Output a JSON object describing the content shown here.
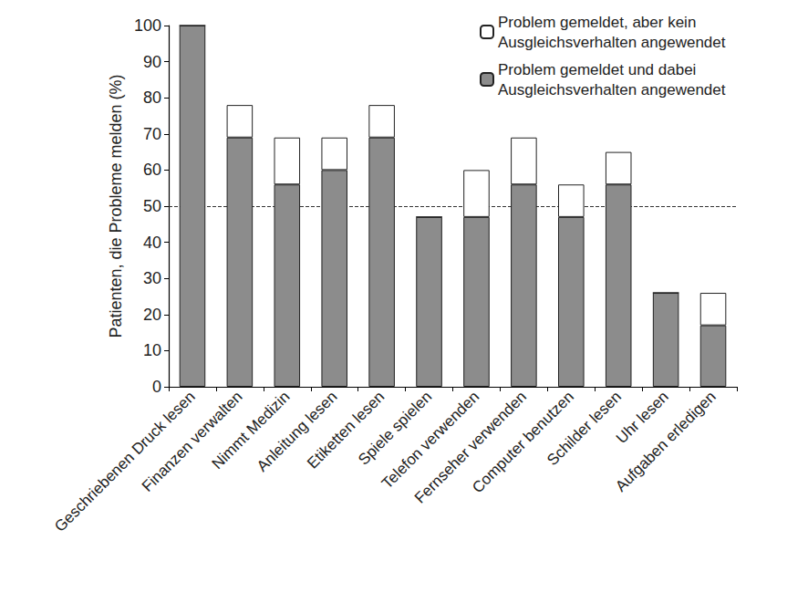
{
  "chart_data": {
    "type": "bar",
    "stacked": true,
    "y_label": "Patienten, die Probleme melden (%)",
    "categories": [
      "Geschriebenen Druck lesen",
      "Finanzen verwalten",
      "Nimmt Medizin",
      "Anleitung lesen",
      "Etiketten lesen",
      "Spiele spielen",
      "Telefon verwenden",
      "Fernseher verwenden",
      "Computer benutzen",
      "Schilder lesen",
      "Uhr lesen",
      "Aufgaben erledigen"
    ],
    "series": [
      {
        "name": "Problem gemeldet und dabei Ausgleichsverhalten angewendet",
        "color": "#8c8c8c",
        "values": [
          100,
          69,
          56,
          60,
          69,
          47,
          47,
          56,
          47,
          56,
          26,
          17
        ]
      },
      {
        "name": "Problem gemeldet, aber kein Ausgleichsverhalten angewendet",
        "color": "#ffffff",
        "values": [
          0,
          9,
          13,
          9,
          9,
          0,
          13,
          13,
          9,
          9,
          0,
          9
        ]
      }
    ],
    "legend_order": [
      "Problem gemeldet, aber kein Ausgleichsverhalten angewendet",
      "Problem gemeldet und dabei Ausgleichsverhalten angewendet"
    ],
    "reference_lines": [
      {
        "value": 50,
        "line_style": "dashed"
      }
    ],
    "ylim": [
      0,
      100
    ],
    "yticks": [
      0,
      10,
      20,
      30,
      40,
      50,
      60,
      70,
      80,
      90,
      100
    ],
    "grid": false,
    "legend": "top-right"
  }
}
